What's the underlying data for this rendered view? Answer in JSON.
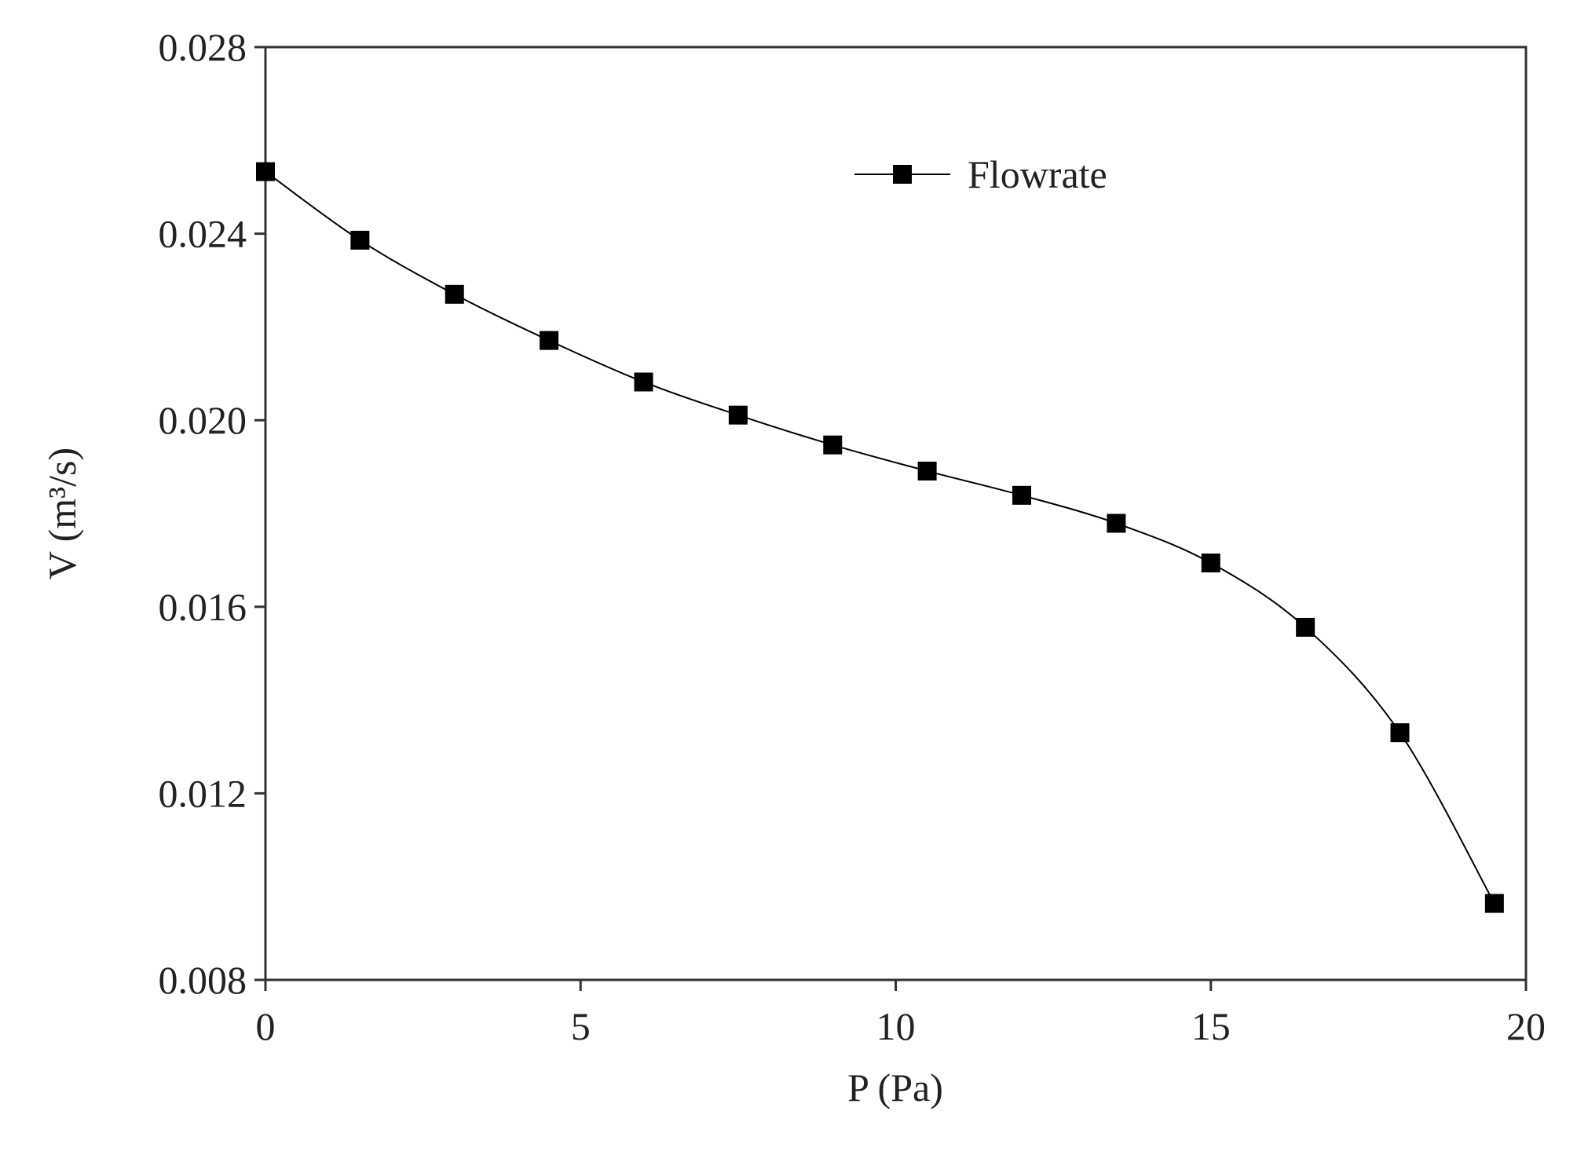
{
  "chart_data": {
    "type": "line",
    "xlabel": "P (Pa)",
    "ylabel": "V (m³/s)",
    "x": [
      0,
      1.5,
      3,
      4.5,
      6,
      7.5,
      9,
      10.5,
      12,
      13.5,
      15,
      16.5,
      18,
      19.5
    ],
    "series": [
      {
        "name": "Flowrate",
        "color": "#000000",
        "values": [
          0.02533,
          0.02386,
          0.0227,
          0.02171,
          0.02082,
          0.02011,
          0.01947,
          0.01891,
          0.01839,
          0.01779,
          0.01694,
          0.01556,
          0.0133,
          0.00964
        ]
      }
    ],
    "xlim": [
      0,
      20
    ],
    "xticks": [
      0,
      5,
      10,
      15,
      20
    ],
    "ylim": [
      0.008,
      0.028
    ],
    "yticks": [
      0.008,
      0.012,
      0.016,
      {
        "value": 0.02,
        "label": "0.020"
      },
      0.024,
      0.028
    ],
    "legend": "upper right",
    "grid": false
  }
}
